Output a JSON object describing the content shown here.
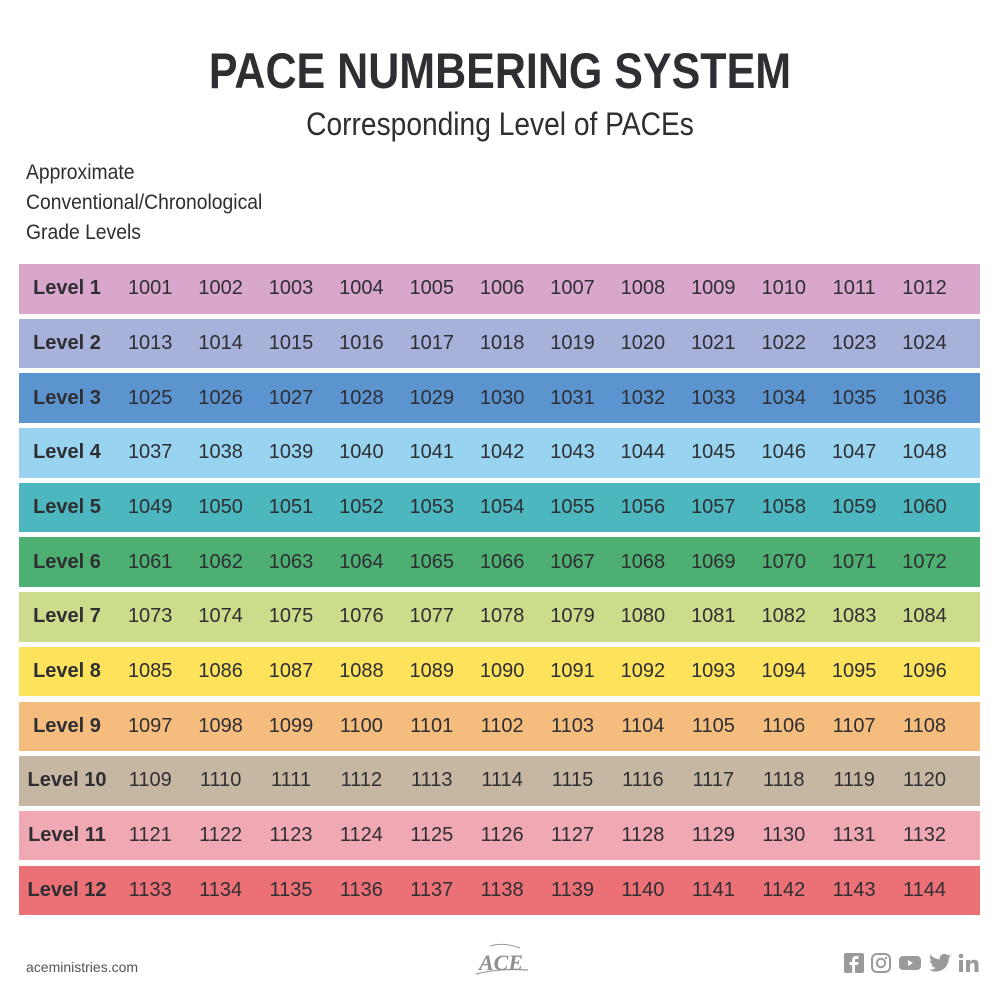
{
  "title": "PACE NUMBERING SYSTEM",
  "subtitle": "Corresponding Level of PACEs",
  "grade_note": [
    "Approximate",
    "Conventional/Chronological",
    "Grade Levels"
  ],
  "rows": [
    {
      "label": "Level 1",
      "color": "#d9a7cc",
      "paces": [
        "1001",
        "1002",
        "1003",
        "1004",
        "1005",
        "1006",
        "1007",
        "1008",
        "1009",
        "1010",
        "1011",
        "1012"
      ]
    },
    {
      "label": "Level 2",
      "color": "#a7b1d9",
      "paces": [
        "1013",
        "1014",
        "1015",
        "1016",
        "1017",
        "1018",
        "1019",
        "1020",
        "1021",
        "1022",
        "1023",
        "1024"
      ]
    },
    {
      "label": "Level 3",
      "color": "#5b94cf",
      "paces": [
        "1025",
        "1026",
        "1027",
        "1028",
        "1029",
        "1030",
        "1031",
        "1032",
        "1033",
        "1034",
        "1035",
        "1036"
      ]
    },
    {
      "label": "Level 4",
      "color": "#98d3ef",
      "paces": [
        "1037",
        "1038",
        "1039",
        "1040",
        "1041",
        "1042",
        "1043",
        "1044",
        "1045",
        "1046",
        "1047",
        "1048"
      ]
    },
    {
      "label": "Level 5",
      "color": "#4db7bf",
      "paces": [
        "1049",
        "1050",
        "1051",
        "1052",
        "1053",
        "1054",
        "1055",
        "1056",
        "1057",
        "1058",
        "1059",
        "1060"
      ]
    },
    {
      "label": "Level 6",
      "color": "#4daf72",
      "paces": [
        "1061",
        "1062",
        "1063",
        "1064",
        "1065",
        "1066",
        "1067",
        "1068",
        "1069",
        "1070",
        "1071",
        "1072"
      ]
    },
    {
      "label": "Level 7",
      "color": "#cbdc8a",
      "paces": [
        "1073",
        "1074",
        "1075",
        "1076",
        "1077",
        "1078",
        "1079",
        "1080",
        "1081",
        "1082",
        "1083",
        "1084"
      ]
    },
    {
      "label": "Level 8",
      "color": "#fde25c",
      "paces": [
        "1085",
        "1086",
        "1087",
        "1088",
        "1089",
        "1090",
        "1091",
        "1092",
        "1093",
        "1094",
        "1095",
        "1096"
      ]
    },
    {
      "label": "Level 9",
      "color": "#f4bc7d",
      "paces": [
        "1097",
        "1098",
        "1099",
        "1100",
        "1101",
        "1102",
        "1103",
        "1104",
        "1105",
        "1106",
        "1107",
        "1108"
      ]
    },
    {
      "label": "Level 10",
      "color": "#c6b7a2",
      "paces": [
        "1109",
        "1110",
        "1111",
        "1112",
        "1113",
        "1114",
        "1115",
        "1116",
        "1117",
        "1118",
        "1119",
        "1120"
      ]
    },
    {
      "label": "Level 11",
      "color": "#f0a8b3",
      "paces": [
        "1121",
        "1122",
        "1123",
        "1124",
        "1125",
        "1126",
        "1127",
        "1128",
        "1129",
        "1130",
        "1131",
        "1132"
      ]
    },
    {
      "label": "Level 12",
      "color": "#ec7177",
      "paces": [
        "1133",
        "1134",
        "1135",
        "1136",
        "1137",
        "1138",
        "1139",
        "1140",
        "1141",
        "1142",
        "1143",
        "1144"
      ]
    }
  ],
  "footer": {
    "website": "aceministries.com",
    "logo_text": "ACE",
    "social_icons": [
      "facebook-icon",
      "instagram-icon",
      "youtube-icon",
      "twitter-icon",
      "linkedin-icon"
    ]
  }
}
